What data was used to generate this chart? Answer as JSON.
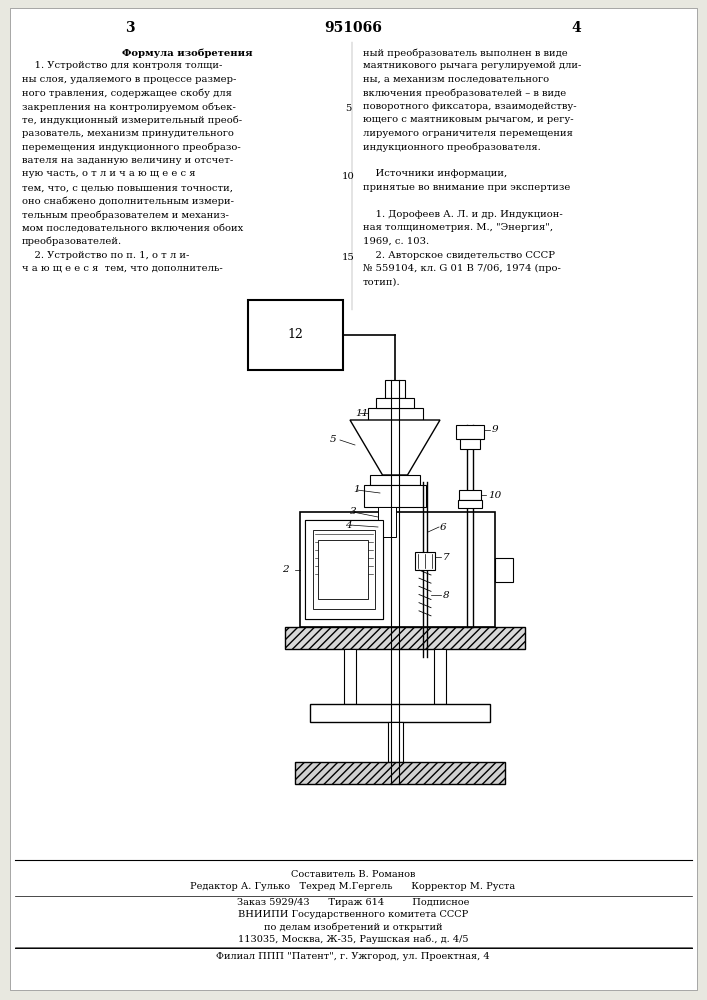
{
  "bg_color": "#e8e8e0",
  "page_color": "#ffffff",
  "title_number": "951066",
  "page_left": "3",
  "page_right": "4",
  "left_col_lines": [
    "Формула изобретения",
    "    1. Устройство для контроля толщи-",
    "ны слоя, удаляемого в процессе размер-",
    "ного травления, содержащее скобу для",
    "закрепления на контролируемом объек-",
    "те, индукционный измерительный преоб-",
    "разователь, механизм принудительного",
    "перемещения индукционного преобразо-",
    "вателя на заданную величину и отсчет-",
    "ную часть, о т л и ч а ю щ е е с я",
    "тем, что, с целью повышения точности,",
    "оно снабжено дополнительным измери-",
    "тельным преобразователем и механиз-",
    "мом последовательного включения обоих",
    "преобразователей.",
    "    2. Устройство по п. 1, о т л и-",
    "ч а ю щ е е с я  тем, что дополнитель-"
  ],
  "right_col_lines": [
    "ный преобразователь выполнен в виде",
    "маятникового рычага регулируемой дли-",
    "ны, а механизм последовательного",
    "включения преобразователей – в виде",
    "поворотного фиксатора, взаимодейству-",
    "ющего с маятниковым рычагом, и регу-",
    "лируемого ограничителя перемещения",
    "индукционного преобразователя.",
    "",
    "    Источники информации,",
    "принятые во внимание при экспертизе",
    "",
    "    1. Дорофеев А. Л. и др. Индукцион-",
    "ная толщинометрия. М., \"Энергия\",",
    "1969, с. 103.",
    "    2. Авторское свидетельство СССР",
    "№ 559104, кл. G 01 B 7/06, 1974 (про-",
    "тотип)."
  ],
  "line_number_positions": [
    {
      "text": "5",
      "line_idx": 4
    },
    {
      "text": "10",
      "line_idx": 9
    },
    {
      "text": "15",
      "line_idx": 15
    }
  ],
  "footer_line1": "Составитель В. Романов",
  "footer_line2": "Редактор А. Гулько   Техред М.Гергель      Корректор М. Руста",
  "footer_line3": "Заказ 5929/43      Тираж 614         Подписное",
  "footer_line4": "ВНИИПИ Государственного комитета СССР",
  "footer_line5": "по делам изобретений и открытий",
  "footer_line6": "113035, Москва, Ж-35, Раушская наб., д. 4/5",
  "footer_line7": "Филиал ППП \"Патент\", г. Ужгород, ул. Проектная, 4"
}
